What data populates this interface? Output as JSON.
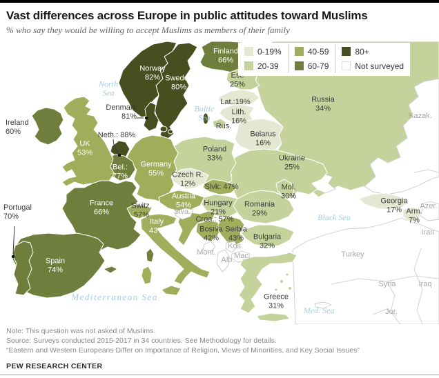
{
  "header": {
    "title": "Vast differences across Europe in public attitudes toward Muslims",
    "subtitle": "% who say they would be willing to accept Muslims as members of their family"
  },
  "legend": {
    "items": [
      {
        "label": "0-19%",
        "band": "b0",
        "color": "#e4e7d2"
      },
      {
        "label": "20-39",
        "band": "b1",
        "color": "#c6d29b"
      },
      {
        "label": "40-59",
        "band": "b2",
        "color": "#a0ae5c"
      },
      {
        "label": "60-79",
        "band": "b3",
        "color": "#6f7e3d"
      },
      {
        "label": "80+",
        "band": "b4",
        "color": "#454f20"
      },
      {
        "label": "Not surveyed",
        "band": "ns",
        "color": "#ffffff"
      }
    ]
  },
  "map": {
    "countries": [
      {
        "id": "norway",
        "name": "Norway",
        "value": "82%",
        "band": "b4"
      },
      {
        "id": "sweden",
        "name": "Sweden",
        "value": "80%",
        "band": "b4"
      },
      {
        "id": "denmark",
        "name": "Denmark",
        "value": "81%",
        "band": "b4"
      },
      {
        "id": "netherlands",
        "name": "Neth.",
        "value": "88%",
        "band": "b4"
      },
      {
        "id": "finland",
        "name": "Finland",
        "value": "66%",
        "band": "b3"
      },
      {
        "id": "ireland",
        "name": "Ireland",
        "value": "60%",
        "band": "b3"
      },
      {
        "id": "france",
        "name": "France",
        "value": "66%",
        "band": "b3"
      },
      {
        "id": "spain",
        "name": "Spain",
        "value": "74%",
        "band": "b3"
      },
      {
        "id": "portugal",
        "name": "Portugal",
        "value": "70%",
        "band": "b3"
      },
      {
        "id": "belgium",
        "name": "Bel.",
        "value": "77%",
        "band": "b3"
      },
      {
        "id": "uk",
        "name": "UK",
        "value": "53%",
        "band": "b2"
      },
      {
        "id": "germany",
        "name": "Germany",
        "value": "55%",
        "band": "b2"
      },
      {
        "id": "switzerland",
        "name": "Switz.",
        "value": "57%",
        "band": "b2"
      },
      {
        "id": "austria",
        "name": "Austria",
        "value": "54%",
        "band": "b2"
      },
      {
        "id": "italy",
        "name": "Italy",
        "value": "43%",
        "band": "b2"
      },
      {
        "id": "slovakia",
        "name": "Slvk",
        "value": "47%",
        "band": "b2"
      },
      {
        "id": "croatia",
        "name": "Croa.",
        "value": "57%",
        "band": "b2"
      },
      {
        "id": "bosnia",
        "name": "Bosnia",
        "value": "42%",
        "band": "b2"
      },
      {
        "id": "serbia",
        "name": "Serbia",
        "value": "43%",
        "band": "b2"
      },
      {
        "id": "russia",
        "name": "Russia",
        "value": "34%",
        "band": "b1"
      },
      {
        "id": "kaliningrad",
        "name": "Rus.",
        "value": "",
        "band": "b1"
      },
      {
        "id": "estonia",
        "name": "Est.",
        "value": "25%",
        "band": "b1"
      },
      {
        "id": "poland",
        "name": "Poland",
        "value": "33%",
        "band": "b1"
      },
      {
        "id": "ukraine",
        "name": "Ukraine",
        "value": "25%",
        "band": "b1"
      },
      {
        "id": "moldova",
        "name": "Mol.",
        "value": "30%",
        "band": "b1"
      },
      {
        "id": "romania",
        "name": "Romania",
        "value": "29%",
        "band": "b1"
      },
      {
        "id": "bulgaria",
        "name": "Bulgaria",
        "value": "32%",
        "band": "b1"
      },
      {
        "id": "greece",
        "name": "Greece",
        "value": "31%",
        "band": "b1"
      },
      {
        "id": "hungary",
        "name": "Hungary",
        "value": "21%",
        "band": "b1"
      },
      {
        "id": "czech",
        "name": "Czech R.",
        "value": "12%",
        "band": "b0"
      },
      {
        "id": "belarus",
        "name": "Belarus",
        "value": "16%",
        "band": "b0"
      },
      {
        "id": "lithuania",
        "name": "Lith.",
        "value": "16%",
        "band": "b0"
      },
      {
        "id": "latvia",
        "name": "Lat.",
        "value": "19%",
        "band": "b0"
      },
      {
        "id": "georgia",
        "name": "Georgia",
        "value": "17%",
        "band": "b0"
      },
      {
        "id": "armenia",
        "name": "Arm.",
        "value": "7%",
        "band": "b0"
      }
    ],
    "labels": [
      {
        "id": "norway",
        "lines": [
          "Norway",
          "82%"
        ]
      },
      {
        "id": "sweden",
        "lines": [
          "Sweden",
          "80%"
        ]
      },
      {
        "id": "finland",
        "lines": [
          "Finland",
          "66%"
        ]
      },
      {
        "id": "denmark",
        "lines": [
          "Denmark",
          "81%"
        ]
      },
      {
        "id": "neth",
        "lines": [
          "Neth.: 88%"
        ]
      },
      {
        "id": "bel",
        "lines": [
          "Bel.:",
          "77%"
        ]
      },
      {
        "id": "ireland",
        "lines": [
          "Ireland",
          "60%"
        ]
      },
      {
        "id": "uk",
        "lines": [
          "UK",
          "53%"
        ]
      },
      {
        "id": "germany",
        "lines": [
          "Germany",
          "55%"
        ]
      },
      {
        "id": "czech",
        "lines": [
          "Czech R.",
          "12%"
        ]
      },
      {
        "id": "slvk",
        "lines": [
          "Slvk: 47%"
        ]
      },
      {
        "id": "austria",
        "lines": [
          "Austria",
          "54%"
        ]
      },
      {
        "id": "hungary",
        "lines": [
          "Hungary",
          "21%"
        ]
      },
      {
        "id": "switz",
        "lines": [
          "Switz.",
          "57%"
        ]
      },
      {
        "id": "italy",
        "lines": [
          "Italy",
          "43%"
        ]
      },
      {
        "id": "france",
        "lines": [
          "France",
          "66%"
        ]
      },
      {
        "id": "portugal",
        "lines": [
          "Portugal",
          "70%"
        ]
      },
      {
        "id": "spain",
        "lines": [
          "Spain",
          "74%"
        ]
      },
      {
        "id": "croa",
        "lines": [
          "Croa.: 57%"
        ]
      },
      {
        "id": "bosnia",
        "lines": [
          "Bosnia",
          "42%"
        ]
      },
      {
        "id": "serbia",
        "lines": [
          "Serbia",
          "43%"
        ]
      },
      {
        "id": "bulgaria",
        "lines": [
          "Bulgaria",
          "32%"
        ]
      },
      {
        "id": "romania",
        "lines": [
          "Romania",
          "29%"
        ]
      },
      {
        "id": "mol",
        "lines": [
          "Mol.",
          "30%"
        ]
      },
      {
        "id": "ukraine",
        "lines": [
          "Ukraine",
          "25%"
        ]
      },
      {
        "id": "poland",
        "lines": [
          "Poland",
          "33%"
        ]
      },
      {
        "id": "belarus",
        "lines": [
          "Belarus",
          "16%"
        ]
      },
      {
        "id": "russia",
        "lines": [
          "Russia",
          "34%"
        ]
      },
      {
        "id": "est",
        "lines": [
          "Est.",
          "25%"
        ]
      },
      {
        "id": "lat",
        "lines": [
          "Lat.:19%"
        ]
      },
      {
        "id": "lith",
        "lines": [
          "Lith.",
          "16%"
        ]
      },
      {
        "id": "rusk",
        "lines": [
          "Rus."
        ]
      },
      {
        "id": "greece",
        "lines": [
          "Greece",
          "31%"
        ]
      },
      {
        "id": "georgia",
        "lines": [
          "Georgia",
          "17%"
        ]
      },
      {
        "id": "arm",
        "lines": [
          "Arm.",
          "7%"
        ]
      },
      {
        "id": "kazak",
        "lines": [
          "Kazak."
        ]
      },
      {
        "id": "azer",
        "lines": [
          "Azer."
        ]
      },
      {
        "id": "iran",
        "lines": [
          "Iran"
        ]
      },
      {
        "id": "turkey",
        "lines": [
          "Turkey"
        ]
      },
      {
        "id": "syria",
        "lines": [
          "Syria"
        ]
      },
      {
        "id": "iraq",
        "lines": [
          "Iraq"
        ]
      },
      {
        "id": "jor",
        "lines": [
          "Jor."
        ]
      },
      {
        "id": "mont",
        "lines": [
          "Mont."
        ]
      },
      {
        "id": "kos",
        "lines": [
          "Kos."
        ]
      },
      {
        "id": "mac",
        "lines": [
          "Mac."
        ]
      },
      {
        "id": "alb",
        "lines": [
          "Alb."
        ]
      },
      {
        "id": "slva",
        "lines": [
          "Slva."
        ]
      },
      {
        "id": "northsea",
        "lines": [
          "North",
          "Sea"
        ]
      },
      {
        "id": "balticsea",
        "lines": [
          "Baltic",
          "Sea"
        ]
      },
      {
        "id": "blacksea",
        "lines": [
          "Black Sea"
        ]
      },
      {
        "id": "medsea",
        "lines": [
          "Mediterranean Sea"
        ]
      },
      {
        "id": "medse",
        "lines": [
          "Med. Sea"
        ]
      }
    ]
  },
  "footer": {
    "note": "Note: This question was not asked of Muslims.",
    "source": "Source: Surveys conducted 2015-2017 in 34 countries. See Methodology for details.",
    "quote": "“Eastern and Western Europeans Differ on Importance of Religion, Views of Minorities, and Key Social Issues”",
    "brand": "PEW RESEARCH CENTER"
  }
}
